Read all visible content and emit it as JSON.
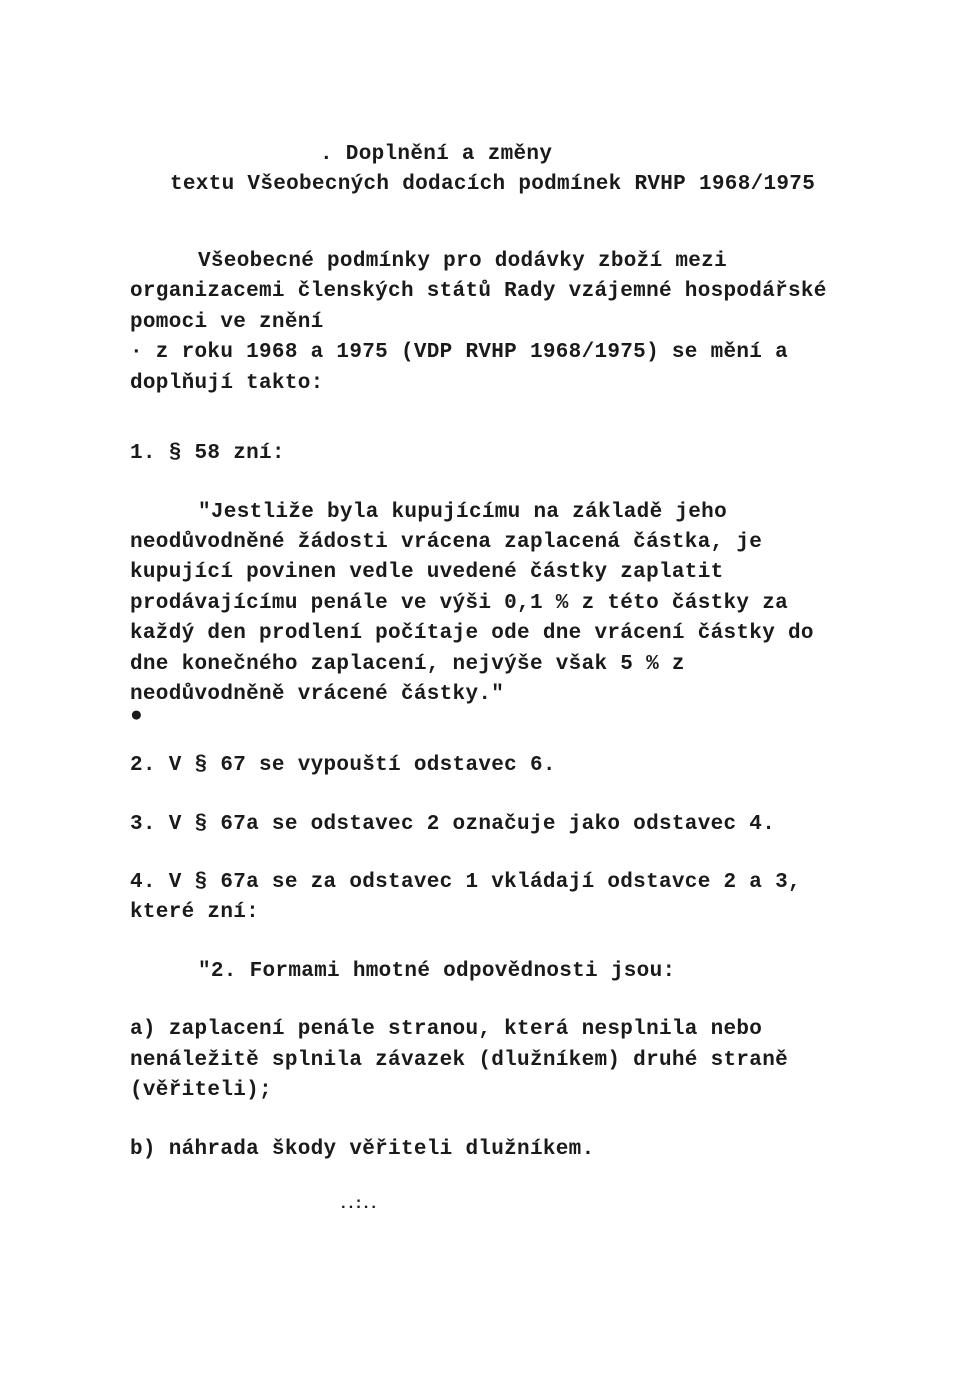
{
  "title": {
    "line1": ". Doplnění a změny",
    "line2": "textu Všeobecných dodacích podmínek RVHP 1968/1975"
  },
  "intro": {
    "p1": "Všeobecné podmínky pro dodávky zboží mezi organizacemi členských států Rady vzájemné hospodářské pomoci ve znění",
    "p2": "· z roku 1968 a 1975 (VDP RVHP 1968/1975) se mění a doplňují takto:"
  },
  "sec1": {
    "lead": "1. § 58 zní:",
    "body": "\"Jestliže byla kupujícímu na základě jeho neodůvodněné žádosti vrácena zaplacená částka, je kupující povinen vedle uvedené částky zaplatit prodávajícímu penále ve výši 0,1 % z této částky za každý den prodlení počítaje ode dne vrácení částky do dne konečného zaplacení, nejvýše však 5 % z neodůvodněně vrácené částky.\"",
    "bullet": "●"
  },
  "sec2": "2. V § 67 se vypouští odstavec 6.",
  "sec3": "3. V § 67a se odstavec 2 označuje jako odstavec 4.",
  "sec4": {
    "lead": "4. V § 67a se za odstavec 1 vkládají odstavce 2 a 3, které zní:",
    "q2": "\"2. Formami hmotné odpovědnosti jsou:",
    "a": "a) zaplacení penále stranou, která nesplnila nebo nenáležitě splnila závazek (dlužníkem) druhé straně (věřiteli);",
    "b": "b) náhrada škody věřiteli dlužníkem."
  },
  "footer_mark": "..:.."
}
